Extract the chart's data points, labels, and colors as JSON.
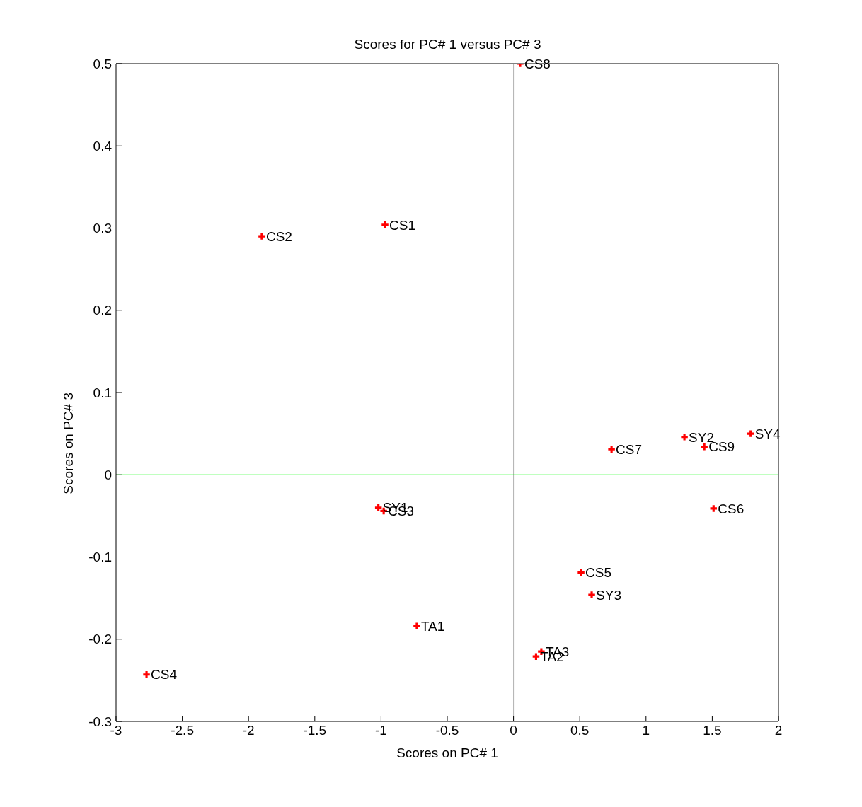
{
  "chart_data": {
    "type": "scatter",
    "title": "Scores for PC# 1 versus PC# 3",
    "xlabel": "Scores on PC# 1",
    "ylabel": "Scores on PC# 3",
    "x": [
      0.05,
      -0.97,
      -1.9,
      1.29,
      1.79,
      1.44,
      0.74,
      1.51,
      -1.02,
      -0.98,
      0.51,
      0.59,
      -0.73,
      0.21,
      0.17,
      -2.77
    ],
    "series": [
      {
        "color": "#ff0000",
        "values": [
          0.5,
          0.304,
          0.29,
          0.046,
          0.05,
          0.034,
          0.031,
          -0.041,
          -0.04,
          -0.044,
          -0.119,
          -0.146,
          -0.184,
          -0.215,
          -0.221,
          -0.243
        ],
        "value_labels": [
          "CS8",
          "CS1",
          "CS2",
          "SY2",
          "SY4",
          "CS9",
          "CS7",
          "CS6",
          "SY1",
          "CS3",
          "CS5",
          "SY3",
          "TA1",
          "TA3",
          "TA2",
          "CS4"
        ]
      }
    ],
    "marker": "cross",
    "grid": false,
    "legend": false,
    "xlim": [
      -3,
      2
    ],
    "xticks": [
      -3,
      -2.5,
      -2,
      -1.5,
      -1,
      -0.5,
      0,
      0.5,
      1,
      1.5,
      2
    ],
    "ylim": [
      -0.3,
      0.5
    ],
    "yticks": [
      -0.3,
      -0.2,
      -0.1,
      0,
      0.1,
      0.2,
      0.3,
      0.4,
      0.5
    ],
    "ref_lines": [
      {
        "axis": "x",
        "value": 0,
        "color": "#b0b0b0"
      },
      {
        "axis": "y",
        "value": 0,
        "color": "#00ff00"
      }
    ]
  }
}
